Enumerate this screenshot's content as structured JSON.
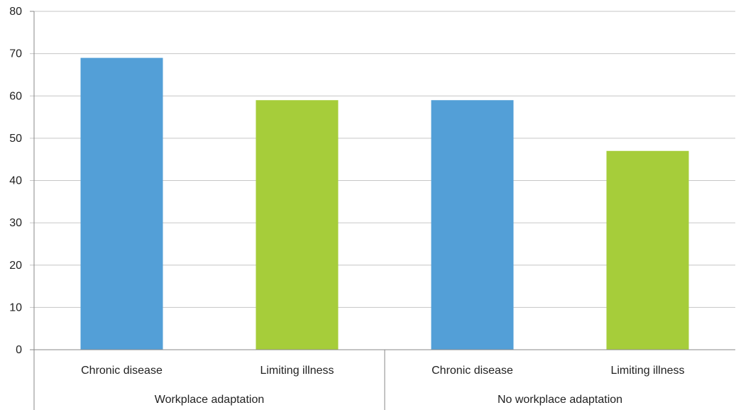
{
  "chart_data": {
    "type": "bar",
    "ylim": [
      0,
      80
    ],
    "yticks": [
      0,
      10,
      20,
      30,
      40,
      50,
      60,
      70,
      80
    ],
    "grid": true,
    "categories": [
      "Chronic disease",
      "Limiting illness",
      "Chronic disease",
      "Limiting illness"
    ],
    "groups": [
      {
        "label": "Workplace adaptation",
        "span": 2
      },
      {
        "label": "No workplace adaptation",
        "span": 2
      }
    ],
    "values": [
      69,
      59,
      59,
      47
    ],
    "bar_colors": [
      "#539fd7",
      "#a6cd3a",
      "#539fd7",
      "#a6cd3a"
    ],
    "title": "",
    "xlabel": "",
    "ylabel": ""
  }
}
